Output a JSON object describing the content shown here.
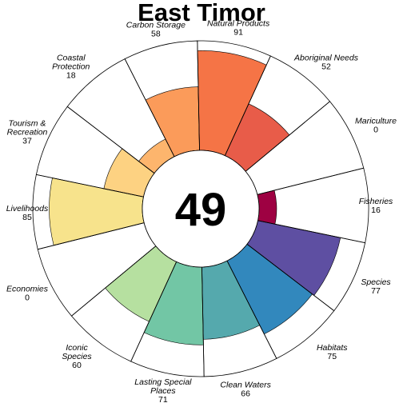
{
  "chart_data": {
    "type": "flower",
    "title": "East Timor",
    "center_score": "49",
    "value_max": 100,
    "petals": [
      {
        "label": [
          "Fisheries"
        ],
        "value_text": "16",
        "value": 16,
        "color": "#9e0142"
      },
      {
        "label": [
          "Species"
        ],
        "value_text": "77",
        "value": 77,
        "color": "#5e4fa2"
      },
      {
        "label": [
          "Habitats"
        ],
        "value_text": "75",
        "value": 75,
        "color": "#3288bd"
      },
      {
        "label": [
          "Clean Waters"
        ],
        "value_text": "66",
        "value": 66,
        "color": "#55a9ad"
      },
      {
        "label": [
          "Lasting Special",
          "Places"
        ],
        "value_text": "71",
        "value": 71,
        "color": "#72c6a5"
      },
      {
        "label": [
          "Iconic",
          "Species"
        ],
        "value_text": "60",
        "value": 60,
        "color": "#b6e0a0"
      },
      {
        "label": [
          "Economies"
        ],
        "value_text": "0",
        "value": 0,
        "color": "#e6f598"
      },
      {
        "label": [
          "Livelihoods"
        ],
        "value_text": "85",
        "value": 85,
        "color": "#f7e38c"
      },
      {
        "label": [
          "Tourism &",
          "Recreation"
        ],
        "value_text": "37",
        "value": 37,
        "color": "#fdd282"
      },
      {
        "label": [
          "Coastal",
          "Protection"
        ],
        "value_text": "18",
        "value": 18,
        "color": "#fdb56d"
      },
      {
        "label": [
          "Carbon Storage"
        ],
        "value_text": "58",
        "value": 58,
        "color": "#fb9b5a"
      },
      {
        "label": [
          "Natural Products"
        ],
        "value_text": "91",
        "value": 91,
        "color": "#f57446"
      },
      {
        "label": [
          "Aboriginal Needs"
        ],
        "value_text": "52",
        "value": 52,
        "color": "#e85c49"
      },
      {
        "label": [
          "Mariculture"
        ],
        "value_text": "0",
        "value": 0,
        "color": "#d53e4f"
      }
    ]
  }
}
